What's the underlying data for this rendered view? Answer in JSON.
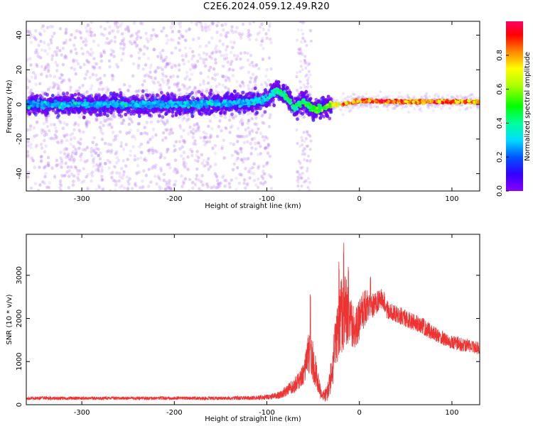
{
  "title": "C2E6.2024.059.12.49.R20",
  "colors": {
    "snr_line": "#ee3333",
    "spectrogram_low": "#7700ee",
    "spectrogram_high": "#ff0044"
  },
  "chart_data": [
    {
      "type": "heatmap",
      "xlabel": "Height of straight line (km)",
      "ylabel": "Frequency (Hz)",
      "xlim": [
        -360,
        130
      ],
      "ylim": [
        -50,
        48
      ],
      "xticks": [
        -300,
        -200,
        -100,
        0,
        100
      ],
      "yticks": [
        -40,
        -20,
        0,
        20,
        40
      ],
      "colorbar": {
        "label": "Normalized spectral amplitude",
        "range": [
          0,
          1
        ],
        "ticks": [
          "0.0",
          "0.2",
          "0.4",
          "0.6",
          "0.8"
        ],
        "colormap": "hsv-rainbow"
      },
      "main_ridge": [
        {
          "x": -360,
          "y": 0,
          "amp": 0.28
        },
        {
          "x": -300,
          "y": 0,
          "amp": 0.3
        },
        {
          "x": -200,
          "y": 0,
          "amp": 0.3
        },
        {
          "x": -120,
          "y": 1,
          "amp": 0.32
        },
        {
          "x": -100,
          "y": 3,
          "amp": 0.35
        },
        {
          "x": -90,
          "y": 8,
          "amp": 0.45
        },
        {
          "x": -80,
          "y": 5,
          "amp": 0.5
        },
        {
          "x": -70,
          "y": -2,
          "amp": 0.45
        },
        {
          "x": -60,
          "y": 2,
          "amp": 0.5
        },
        {
          "x": -50,
          "y": -3,
          "amp": 0.55
        },
        {
          "x": -40,
          "y": -2,
          "amp": 0.6
        },
        {
          "x": -30,
          "y": 0,
          "amp": 0.75
        },
        {
          "x": -20,
          "y": 0,
          "amp": 0.9
        },
        {
          "x": -10,
          "y": 1,
          "amp": 0.95
        },
        {
          "x": 0,
          "y": 2,
          "amp": 1.0
        },
        {
          "x": 50,
          "y": 1.5,
          "amp": 0.95
        },
        {
          "x": 100,
          "y": 1.5,
          "amp": 0.92
        },
        {
          "x": 130,
          "y": 1.5,
          "amp": 0.9
        }
      ]
    },
    {
      "type": "line",
      "xlabel": "Height of straight line (km)",
      "ylabel": "SNR (10 * v/v)",
      "xlim": [
        -360,
        130
      ],
      "ylim": [
        0,
        3950
      ],
      "xticks": [
        -300,
        -200,
        -100,
        0,
        100
      ],
      "yticks": [
        0,
        1000,
        2000,
        3000
      ],
      "series": [
        {
          "color": "#ee3333",
          "x": [
            -360,
            -300,
            -250,
            -200,
            -150,
            -110,
            -90,
            -80,
            -70,
            -60,
            -55,
            -50,
            -45,
            -40,
            -35,
            -30,
            -25,
            -20,
            -15,
            -10,
            -5,
            0,
            5,
            10,
            15,
            20,
            25,
            30,
            40,
            50,
            60,
            70,
            80,
            90,
            100,
            110,
            120,
            130
          ],
          "y": [
            150,
            150,
            150,
            150,
            150,
            160,
            200,
            300,
            450,
            700,
            1200,
            1000,
            500,
            200,
            250,
            700,
            1500,
            2000,
            2200,
            2000,
            1700,
            2000,
            2200,
            2350,
            2300,
            2400,
            2450,
            2200,
            2100,
            2000,
            1900,
            1800,
            1650,
            1550,
            1450,
            1400,
            1350,
            1300
          ],
          "noise": [
            40,
            40,
            40,
            40,
            40,
            50,
            80,
            120,
            180,
            250,
            450,
            500,
            300,
            120,
            200,
            400,
            700,
            900,
            800,
            700,
            500,
            500,
            450,
            350,
            300,
            250,
            250,
            230,
            220,
            210,
            200,
            190,
            180,
            170,
            160,
            160,
            150,
            150
          ],
          "spikes": [
            {
              "x": -53,
              "y": 2600
            },
            {
              "x": -22,
              "y": 3350
            },
            {
              "x": -17,
              "y": 3850
            },
            {
              "x": -12,
              "y": 3300
            },
            {
              "x": 12,
              "y": 3000
            },
            {
              "x": 27,
              "y": 2650
            }
          ]
        }
      ]
    }
  ]
}
